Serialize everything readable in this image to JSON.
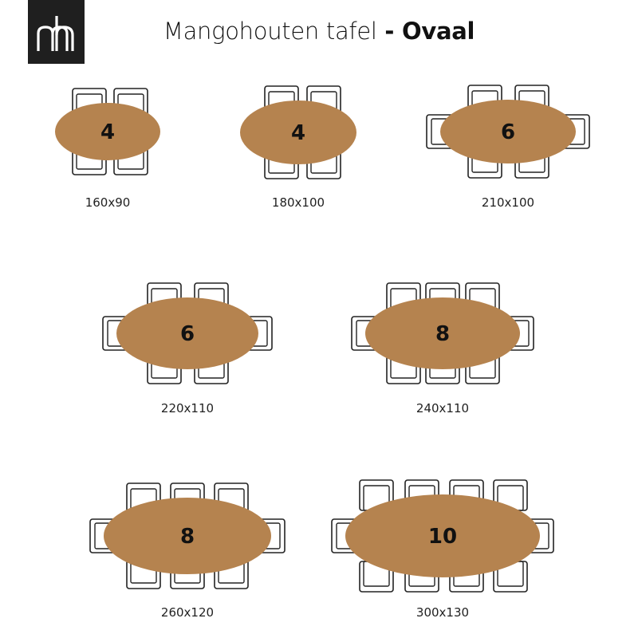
{
  "header": {
    "logo_text": "mh",
    "title_main": "Mangohouten tafel",
    "title_sep": " - ",
    "title_bold": "Ovaal"
  },
  "colors": {
    "table": "#b5834f",
    "chair_stroke": "#222222",
    "logo_bg": "#1f1f1f"
  },
  "tables": [
    {
      "seats": "4",
      "size": "160x90",
      "side_chairs": 2,
      "end_chairs": false
    },
    {
      "seats": "4",
      "size": "180x100",
      "side_chairs": 2,
      "end_chairs": false
    },
    {
      "seats": "6",
      "size": "210x100",
      "side_chairs": 2,
      "end_chairs": true
    },
    {
      "seats": "6",
      "size": "220x110",
      "side_chairs": 2,
      "end_chairs": true
    },
    {
      "seats": "8",
      "size": "240x110",
      "side_chairs": 3,
      "end_chairs": true
    },
    {
      "seats": "8",
      "size": "260x120",
      "side_chairs": 3,
      "end_chairs": true
    },
    {
      "seats": "10",
      "size": "300x130",
      "side_chairs": 4,
      "end_chairs": true
    }
  ]
}
